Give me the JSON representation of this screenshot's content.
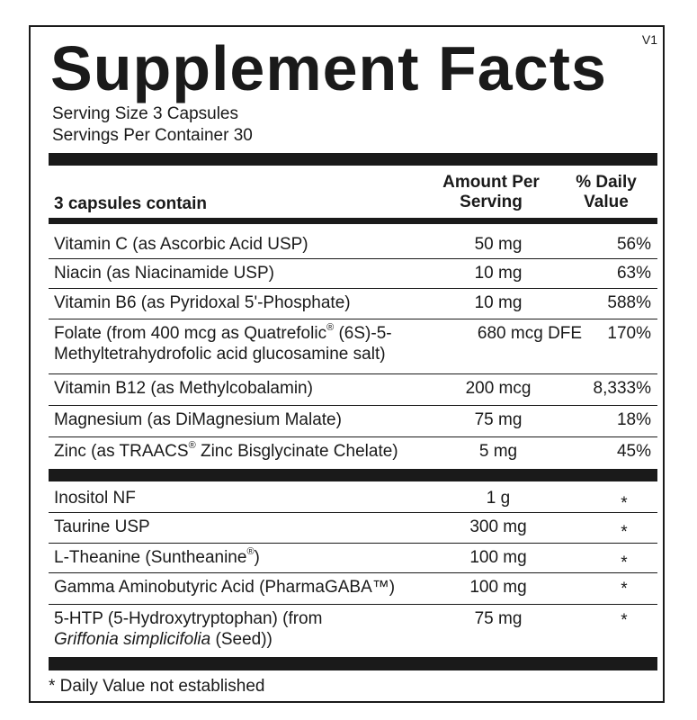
{
  "title": "Supplement Facts",
  "version": "V1",
  "serving_size": "Serving Size 3 Capsules",
  "servings_per_container": "Servings Per Container 30",
  "header": {
    "contains": "3 capsules contain",
    "amount_line1": "Amount Per",
    "amount_line2": "Serving",
    "dv_line1": "% Daily",
    "dv_line2": "Value"
  },
  "section1": [
    {
      "name": "Vitamin C (as Ascorbic Acid USP)",
      "amount": "50 mg",
      "dv": "56%"
    },
    {
      "name": "Niacin (as Niacinamide USP)",
      "amount": "10 mg",
      "dv": "63%"
    },
    {
      "name": "Vitamin B6 (as Pyridoxal 5'-Phosphate)",
      "amount": "10 mg",
      "dv": "588%"
    },
    {
      "name_a": "Folate (from 400 mcg as Quatrefolic",
      "name_b": "(6S)-5-",
      "name_c": "Methyltetrahydrofolic acid glucosamine salt)",
      "amount": "680 mcg DFE",
      "dv": "170%"
    },
    {
      "name": "Vitamin B12 (as Methylcobalamin)",
      "amount": "200 mcg",
      "dv": "8,333%"
    },
    {
      "name": "Magnesium (as DiMagnesium Malate)",
      "amount": "75 mg",
      "dv": "18%"
    },
    {
      "name_a": "Zinc (as TRAACS",
      "name_b": " Zinc Bisglycinate Chelate)",
      "amount": "5 mg",
      "dv": "45%"
    }
  ],
  "section2": [
    {
      "name": "Inositol NF",
      "amount": "1 g",
      "dv": "*"
    },
    {
      "name": "Taurine USP",
      "amount": "300 mg",
      "dv": "*"
    },
    {
      "name_a": "L-Theanine (Suntheanine",
      "name_b": ")",
      "amount": "100 mg",
      "dv": "*"
    },
    {
      "name": "Gamma Aminobutyric Acid (PharmaGABA™)",
      "amount": "100 mg",
      "dv": "*"
    },
    {
      "name_a": "5-HTP (5-Hydroxytryptophan) (from",
      "name_italic": "Griffonia simplicifolia",
      "name_b": " (Seed))",
      "amount": "75 mg",
      "dv": "*"
    }
  ],
  "registered_mark": "®",
  "footnote": "* Daily Value not established"
}
